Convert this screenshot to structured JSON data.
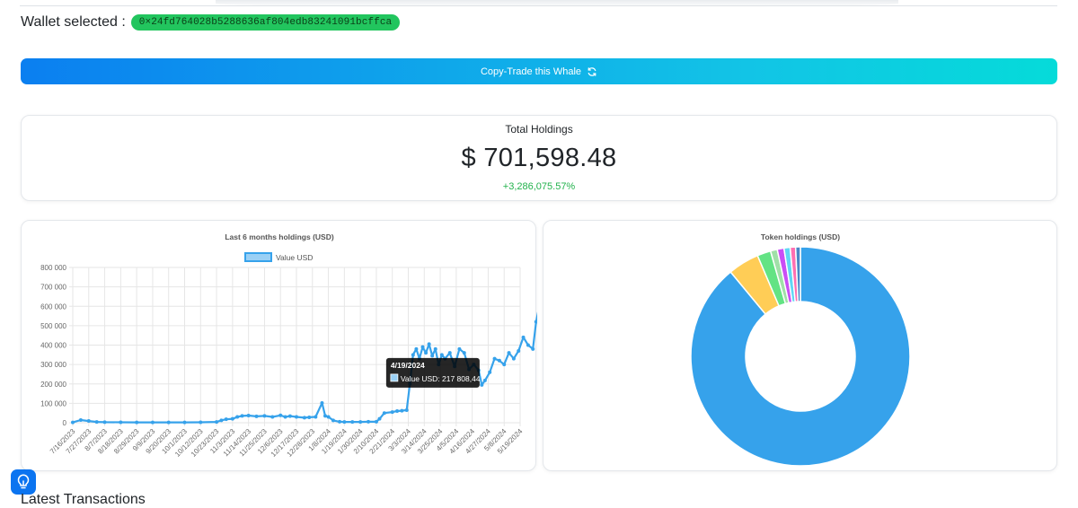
{
  "wallet": {
    "label": "Wallet selected :",
    "address": "0×24fd764028b5288636af804edb83241091bcffca"
  },
  "copy_trade": {
    "label": "Copy-Trade this Whale",
    "icon": "refresh-icon"
  },
  "holdings": {
    "title": "Total Holdings",
    "amount": "$ 701,598.48",
    "change": "+3,286,075.57%"
  },
  "line_chart": {
    "chart_data": {
      "type": "line",
      "title": "Last 6 months holdings (USD)",
      "legend": "Value USD",
      "legend_position": "top",
      "grid": true,
      "ylim": [
        0,
        800000
      ],
      "yticks": [
        "0",
        "100 000",
        "200 000",
        "300 000",
        "400 000",
        "500 000",
        "600 000",
        "700 000",
        "800 000"
      ],
      "xticks": [
        "7/16/2023",
        "7/27/2023",
        "8/7/2023",
        "8/18/2023",
        "8/29/2023",
        "9/9/2023",
        "9/20/2023",
        "10/1/2023",
        "10/12/2023",
        "10/23/2023",
        "11/3/2023",
        "11/14/2023",
        "11/25/2023",
        "12/6/2023",
        "12/17/2023",
        "12/28/2023",
        "1/8/2024",
        "1/19/2024",
        "1/30/2024",
        "2/10/2024",
        "2/21/2024",
        "3/3/2024",
        "3/14/2024",
        "3/25/2024",
        "4/5/2024",
        "4/16/2024",
        "4/27/2024",
        "5/8/2024",
        "5/19/2024"
      ],
      "series": [
        {
          "name": "Value USD",
          "color": "#36a2eb",
          "points": [
            [
              0,
              2000
            ],
            [
              0.5,
              14000
            ],
            [
              1,
              9000
            ],
            [
              1.5,
              4000
            ],
            [
              2,
              3000
            ],
            [
              3,
              2500
            ],
            [
              4,
              2000
            ],
            [
              5,
              2000
            ],
            [
              6,
              2000
            ],
            [
              7,
              2000
            ],
            [
              8,
              2500
            ],
            [
              9,
              4000
            ],
            [
              9.3,
              12000
            ],
            [
              9.6,
              18000
            ],
            [
              10,
              20000
            ],
            [
              10.3,
              30000
            ],
            [
              10.6,
              35000
            ],
            [
              11,
              37000
            ],
            [
              11.5,
              33000
            ],
            [
              12,
              35000
            ],
            [
              12.5,
              30000
            ],
            [
              13,
              38000
            ],
            [
              13.3,
              30000
            ],
            [
              13.6,
              34000
            ],
            [
              14,
              30000
            ],
            [
              14.5,
              26000
            ],
            [
              14.8,
              28000
            ],
            [
              15.2,
              30000
            ],
            [
              15.6,
              102000
            ],
            [
              15.8,
              35000
            ],
            [
              16,
              30000
            ],
            [
              16.3,
              12000
            ],
            [
              16.7,
              5000
            ],
            [
              17,
              4000
            ],
            [
              17.5,
              4000
            ],
            [
              18,
              4000
            ],
            [
              18.5,
              5000
            ],
            [
              19,
              5000
            ],
            [
              19.2,
              20000
            ],
            [
              19.5,
              50000
            ],
            [
              20,
              55000
            ],
            [
              20.3,
              60000
            ],
            [
              20.6,
              62000
            ],
            [
              20.9,
              65000
            ],
            [
              21.1,
              200000
            ],
            [
              21.3,
              350000
            ],
            [
              21.5,
              380000
            ],
            [
              21.7,
              330000
            ],
            [
              21.9,
              390000
            ],
            [
              22.1,
              360000
            ],
            [
              22.3,
              405000
            ],
            [
              22.5,
              345000
            ],
            [
              22.7,
              380000
            ],
            [
              22.9,
              300000
            ],
            [
              23.1,
              350000
            ],
            [
              23.3,
              330000
            ],
            [
              23.6,
              360000
            ],
            [
              23.9,
              290000
            ],
            [
              24.2,
              380000
            ],
            [
              24.5,
              360000
            ],
            [
              24.8,
              275000
            ],
            [
              25.1,
              300000
            ],
            [
              25.4,
              270000
            ],
            [
              25.6,
              195000
            ],
            [
              25.8,
              217808
            ],
            [
              26.1,
              260000
            ],
            [
              26.4,
              330000
            ],
            [
              26.7,
              320000
            ],
            [
              27,
              300000
            ],
            [
              27.3,
              360000
            ],
            [
              27.6,
              330000
            ],
            [
              27.9,
              370000
            ],
            [
              28.2,
              440000
            ],
            [
              28.5,
              400000
            ],
            [
              28.8,
              380000
            ],
            [
              29,
              520000
            ],
            [
              29.2,
              600000
            ],
            [
              29.4,
              580000
            ],
            [
              29.6,
              650000
            ],
            [
              29.8,
              700000
            ]
          ]
        }
      ],
      "tooltip": {
        "title": "4/19/2024",
        "label": "Value USD: 217 808,44",
        "x": 25.8,
        "y": 217808
      }
    }
  },
  "pie_chart": {
    "chart_data": {
      "type": "pie",
      "title": "Token holdings (USD)",
      "series": [
        {
          "values": [
            89.0,
            4.6,
            2.0,
            1.0,
            1.0,
            0.9,
            0.8,
            0.7
          ],
          "colors": [
            "#36a2eb",
            "#ffcd56",
            "#63e384",
            "#a0e0a8",
            "#c94ef5",
            "#5fd6f5",
            "#ff6fb1",
            "#4a88c7"
          ]
        }
      ]
    }
  },
  "latest_transactions": {
    "title": "Latest Transactions"
  },
  "help": {
    "icon": "lightbulb-icon"
  }
}
